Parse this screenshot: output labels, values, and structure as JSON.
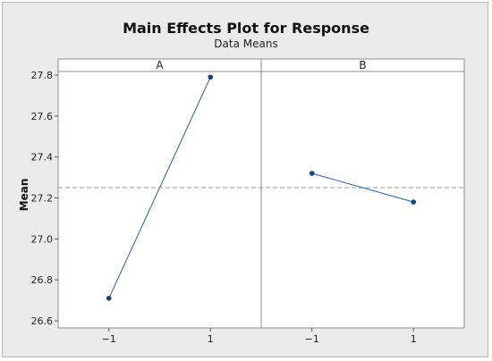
{
  "chart_data": {
    "type": "line",
    "title": "Main Effects Plot for Response",
    "subtitle": "Data Means",
    "ylabel": "Mean",
    "xlabel": "",
    "ylim": [
      26.6,
      27.8
    ],
    "y_ticks": [
      "26.6",
      "26.8",
      "27.0",
      "27.2",
      "27.4",
      "27.6",
      "27.8"
    ],
    "reference_mean": 27.25,
    "panels": [
      {
        "factor": "A",
        "x_ticks": [
          "−1",
          "1"
        ],
        "x": [
          -1,
          1
        ],
        "values": [
          26.71,
          27.79
        ]
      },
      {
        "factor": "B",
        "x_ticks": [
          "−1",
          "1"
        ],
        "x": [
          -1,
          1
        ],
        "values": [
          27.32,
          27.18
        ]
      }
    ],
    "grid": false,
    "legend": "none"
  },
  "colors": {
    "line": "#1f5fa8",
    "marker": "#12457a",
    "reference": "#9a9a9a",
    "panel_bg": "#ffffff",
    "frame_bg": "#ebebeb"
  }
}
